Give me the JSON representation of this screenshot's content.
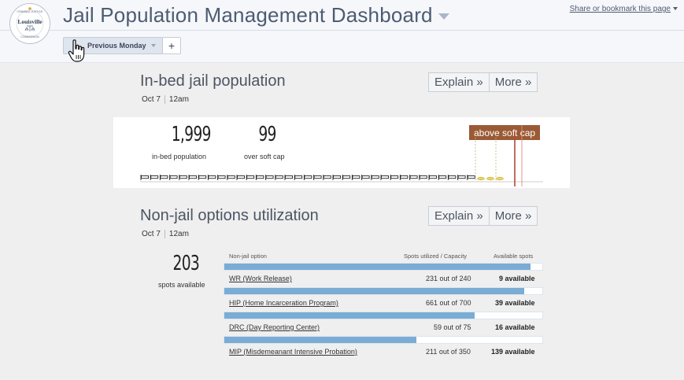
{
  "header": {
    "title": "Jail Population Management Dashboard",
    "share_label": "Share or bookmark this page",
    "logo": {
      "top_text": "CRIMINAL JUSTICE",
      "middle_text": "Louisville",
      "bottom_text": "COMMISSION"
    }
  },
  "tabs": {
    "active_label": "Previous Monday",
    "add_label": "+"
  },
  "in_bed": {
    "title": "In-bed jail population",
    "date": "Oct 7",
    "time": "12am",
    "explain_label": "Explain »",
    "more_label": "More »",
    "population_value": "1,999",
    "population_label": "in-bed population",
    "over_value": "99",
    "over_label": "over soft cap",
    "cap_badge": "above soft cap",
    "colors": {
      "badge": "#9a5a35",
      "cap_line": "#b04a3a"
    }
  },
  "non_jail": {
    "title": "Non-jail options utilization",
    "date": "Oct 7",
    "time": "12am",
    "explain_label": "Explain »",
    "more_label": "More »",
    "spots_value": "203",
    "spots_label": "spots available",
    "columns": {
      "option": "Non-jail option",
      "utilized": "Spots utilized / Capacity",
      "available": "Available spots"
    },
    "bar_color": "#7bacd4",
    "options": [
      {
        "name": "WR (Work Release)",
        "ratio": "231 out of 240",
        "available": "9 available",
        "fill": 0.9625
      },
      {
        "name": "HIP (Home Incarceration Program)",
        "ratio": "661 out of 700",
        "available": "39 available",
        "fill": 0.944
      },
      {
        "name": "DRC (Day Reporting Center)",
        "ratio": "59 out of 75",
        "available": "16 available",
        "fill": 0.787
      },
      {
        "name": "MIP (Misdemeanant Intensive Probation)",
        "ratio": "211 out of 350",
        "available": "139 available",
        "fill": 0.603
      }
    ]
  }
}
